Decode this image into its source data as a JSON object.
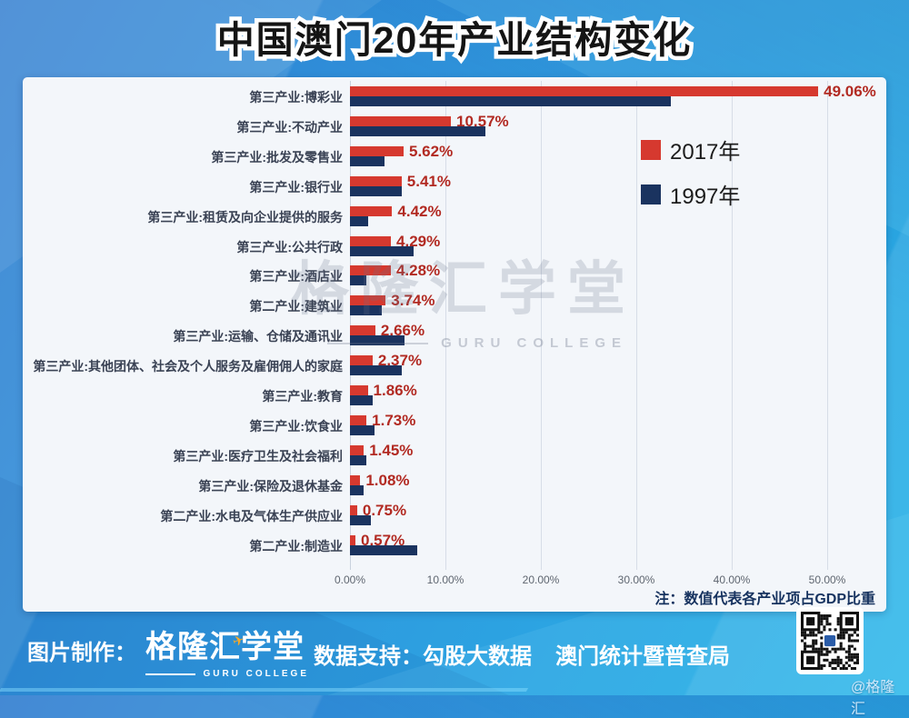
{
  "title": "中国澳门20年产业结构变化",
  "chart": {
    "legend": [
      {
        "label": "2017年",
        "color": "#d6392f"
      },
      {
        "label": "1997年",
        "color": "#1a335f"
      }
    ],
    "note": "注：数值代表各产业项占GDP比重",
    "watermark_cn": "格隆汇学堂",
    "watermark_en": "GURU COLLEGE"
  },
  "chart_data": {
    "type": "bar",
    "orientation": "horizontal",
    "title": "中国澳门20年产业结构变化",
    "categories": [
      "第三产业:博彩业",
      "第三产业:不动产业",
      "第三产业:批发及零售业",
      "第三产业:银行业",
      "第三产业:租赁及向企业提供的服务",
      "第三产业:公共行政",
      "第三产业:酒店业",
      "第二产业:建筑业",
      "第三产业:运输、仓储及通讯业",
      "第三产业:其他团体、社会及个人服务及雇佣佣人的家庭",
      "第三产业:教育",
      "第三产业:饮食业",
      "第三产业:医疗卫生及社会福利",
      "第三产业:保险及退休基金",
      "第二产业:水电及气体生产供应业",
      "第二产业:制造业"
    ],
    "series": [
      {
        "name": "2017年",
        "color": "#d6392f",
        "values": [
          49.06,
          10.57,
          5.62,
          5.41,
          4.42,
          4.29,
          4.28,
          3.74,
          2.66,
          2.37,
          1.86,
          1.73,
          1.45,
          1.08,
          0.75,
          0.57
        ],
        "data_labels": [
          "49.06%",
          "10.57%",
          "5.62%",
          "5.41%",
          "4.42%",
          "4.29%",
          "4.28%",
          "3.74%",
          "2.66%",
          "2.37%",
          "1.86%",
          "1.73%",
          "1.45%",
          "1.08%",
          "0.75%",
          "0.57%"
        ]
      },
      {
        "name": "1997年",
        "color": "#1a335f",
        "values": [
          33.6,
          14.2,
          3.6,
          5.4,
          1.9,
          6.7,
          1.7,
          3.3,
          5.7,
          5.4,
          2.4,
          2.6,
          1.7,
          1.4,
          2.2,
          7.0
        ],
        "values_estimated_from_pixels": true
      }
    ],
    "x_ticks": [
      "0.00%",
      "10.00%",
      "20.00%",
      "30.00%",
      "40.00%",
      "50.00%"
    ],
    "x_tick_values": [
      0,
      10,
      20,
      30,
      40,
      50
    ],
    "xlim": [
      0,
      56
    ],
    "grid": "vertical",
    "legend_position": "inside-upper-right",
    "note": "注：数值代表各产业项占GDP比重"
  },
  "footer": {
    "made_by_label": "图片制作：",
    "logo_cn": "格隆汇学堂",
    "logo_en": "GURU COLLEGE",
    "data_support_label": "数据支持：",
    "data_support_1": "勾股大数据",
    "data_support_2": "澳门统计暨普查局",
    "handle": "@格隆汇"
  }
}
